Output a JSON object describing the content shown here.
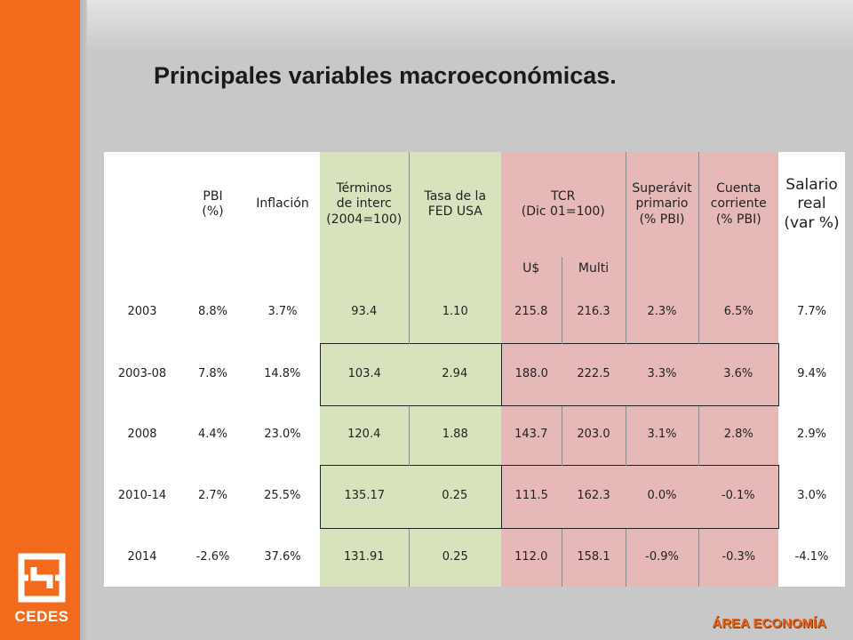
{
  "title": "Principales variables macroeconómicas.",
  "brand": {
    "logo_text": "CEDES",
    "footer_label": "ÁREA ECONOMÍA"
  },
  "colors": {
    "orange": "#f26b1d",
    "green_cell": "#d7e3bc",
    "red_cell": "#e6b8b8"
  },
  "table": {
    "headers": {
      "pbi": "PBI\n(%)",
      "inflacion": "Inflación",
      "terminos": "Términos\nde interc\n(2004=100)",
      "tasa_fed": "Tasa de la\nFED USA",
      "tcr": "TCR\n(Dic 01=100)",
      "superavit": "Superávit\nprimario\n(% PBI)",
      "cuenta": "Cuenta\ncorriente\n(% PBI)",
      "salario": "Salario\nreal\n(var %)"
    },
    "subheaders": {
      "usd": "U$",
      "multi": "Multi"
    },
    "rows": [
      [
        "2003",
        "8.8%",
        "3.7%",
        "93.4",
        "1.10",
        "215.8",
        "216.3",
        "2.3%",
        "6.5%",
        "7.7%"
      ],
      [
        "2003-08",
        "7.8%",
        "14.8%",
        "103.4",
        "2.94",
        "188.0",
        "222.5",
        "3.3%",
        "3.6%",
        "9.4%"
      ],
      [
        "2008",
        "4.4%",
        "23.0%",
        "120.4",
        "1.88",
        "143.7",
        "203.0",
        "3.1%",
        "2.8%",
        "2.9%"
      ],
      [
        "2010-14",
        "2.7%",
        "25.5%",
        "135.17",
        "0.25",
        "111.5",
        "162.3",
        "0.0%",
        "-0.1%",
        "3.0%"
      ],
      [
        "2014",
        "-2.6%",
        "37.6%",
        "131.91",
        "0.25",
        "112.0",
        "158.1",
        "-0.9%",
        "-0.3%",
        "-4.1%"
      ]
    ]
  }
}
